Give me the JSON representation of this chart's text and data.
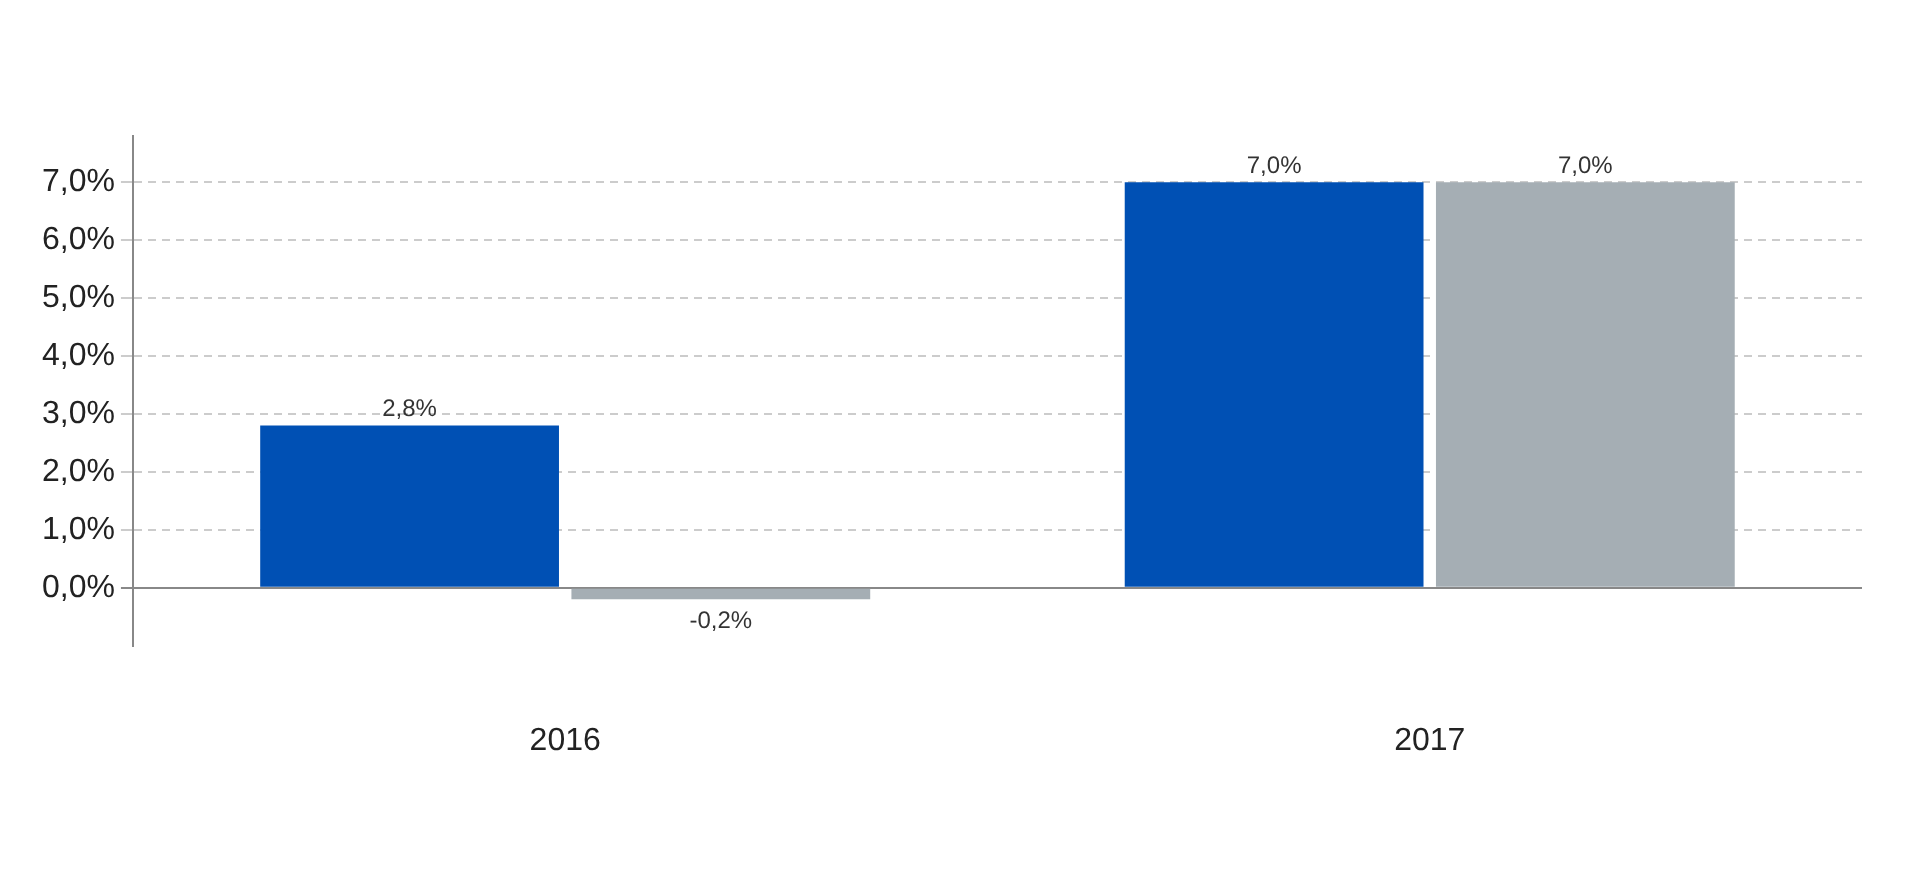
{
  "chart_data": {
    "type": "bar",
    "categories": [
      "2016",
      "2017"
    ],
    "series": [
      {
        "color": "#0050b4",
        "values": [
          2.8,
          7.0
        ],
        "value_labels": [
          "2,8%",
          "7,0%"
        ]
      },
      {
        "color": "#a5aeb4",
        "values": [
          -0.2,
          7.0
        ],
        "value_labels": [
          "-0,2%",
          "7,0%"
        ]
      }
    ],
    "ylim": [
      -1,
      7.8
    ],
    "yticks": [
      {
        "value": 0,
        "label": "0,0%"
      },
      {
        "value": 1,
        "label": "1,0%"
      },
      {
        "value": 2,
        "label": "2,0%"
      },
      {
        "value": 3,
        "label": "3,0%"
      },
      {
        "value": 4,
        "label": "4,0%"
      },
      {
        "value": 5,
        "label": "5,0%"
      },
      {
        "value": 6,
        "label": "6,0%"
      },
      {
        "value": 7,
        "label": "7,0%"
      }
    ],
    "grid": "y",
    "legend": false
  }
}
